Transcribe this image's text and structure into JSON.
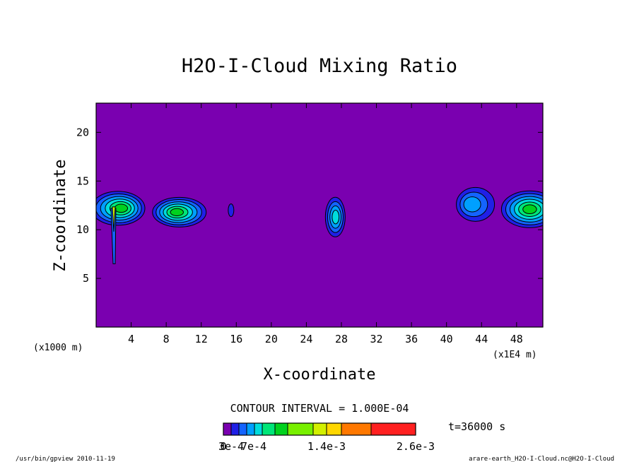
{
  "chart_data": {
    "type": "heatmap",
    "title": "H2O-I-Cloud Mixing Ratio",
    "xlabel": "X-coordinate",
    "ylabel": "Z-coordinate",
    "x_unit_label": "(x1000 m)",
    "x_scale_label": "(x1E4 m)",
    "xlim": [
      0,
      51
    ],
    "ylim": [
      0,
      23
    ],
    "x_ticks": [
      "4",
      "8",
      "12",
      "16",
      "20",
      "24",
      "28",
      "32",
      "36",
      "40",
      "44",
      "48"
    ],
    "x_tick_values": [
      4,
      8,
      12,
      16,
      20,
      24,
      28,
      32,
      36,
      40,
      44,
      48
    ],
    "y_ticks": [
      "5",
      "10",
      "15",
      "20"
    ],
    "y_tick_values": [
      5,
      10,
      15,
      20
    ],
    "contour_interval_label": "CONTOUR INTERVAL = 1.000E-04",
    "time_label": "t=36000 s",
    "background_level_color": "#7a00b0",
    "colorbar": {
      "labels": [
        "0",
        "3e-4",
        "7e-4",
        "1.4e-3",
        "2.6e-3"
      ],
      "label_values": [
        0,
        0.0003,
        0.0007,
        0.0014,
        0.0026
      ],
      "colors": [
        "#7a00b0",
        "#2020e6",
        "#1464ff",
        "#00a0ff",
        "#00dcdc",
        "#00e678",
        "#00d21e",
        "#78f000",
        "#d2f000",
        "#ffd700",
        "#ff7800",
        "#ff2020",
        "#ffa0a0"
      ]
    },
    "features": [
      {
        "x_center": 2.5,
        "z_center": 12.2,
        "peak_level": 6
      },
      {
        "x_center": 9.5,
        "z_center": 11.8,
        "peak_level": 6
      },
      {
        "x_center": 15.4,
        "z_center": 12.0,
        "peak_level": 1
      },
      {
        "x_center": 27.3,
        "z_center": 11.3,
        "peak_level": 4
      },
      {
        "x_center": 43.3,
        "z_center": 12.6,
        "peak_level": 3
      },
      {
        "x_center": 49.5,
        "z_center": 12.1,
        "peak_level": 6
      }
    ]
  },
  "footer": {
    "left": "/usr/bin/gpview  2010-11-19",
    "right": "arare-earth_H2O-I-Cloud.nc@H2O-I-Cloud"
  }
}
